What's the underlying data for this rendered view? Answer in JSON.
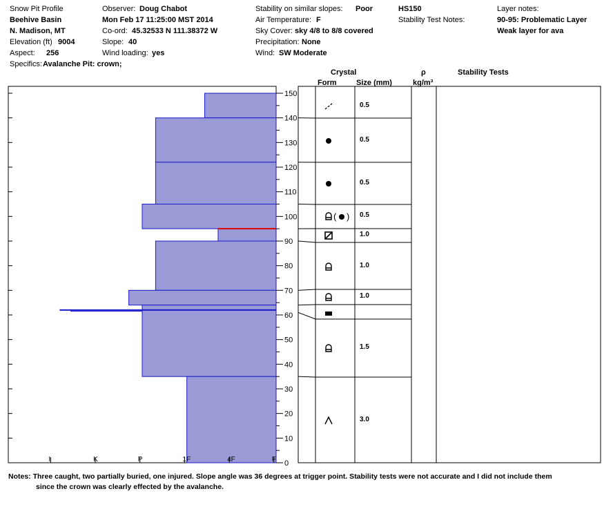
{
  "header": {
    "col1": {
      "title": "Snow Pit Profile",
      "location": "Beehive Basin",
      "region": "N. Madison, MT",
      "elevation_label": "Elevation (ft)",
      "elevation_value": "9004",
      "aspect_label": "Aspect:",
      "aspect_value": "256",
      "specifics_label": "Specifics:",
      "specifics_value": "Avalanche Pit: crown;"
    },
    "col2": {
      "observer_label": "Observer:",
      "observer_value": "Doug Chabot",
      "datetime": "Mon Feb 17 11:25:00 MST 2014",
      "coord_label": "Co-ord:",
      "coord_value": "45.32533 N 111.38372 W",
      "slope_label": "Slope:",
      "slope_value": "40",
      "wind_loading_label": "Wind loading:",
      "wind_loading_value": "yes"
    },
    "col3": {
      "stability_label": "Stability on similar slopes:",
      "stability_value": "Poor",
      "air_temp_label": "Air Temperature:",
      "air_temp_value": "F",
      "sky_label": "Sky Cover:",
      "sky_value": "sky 4/8 to 8/8 covered",
      "precip_label": "Precipitation:",
      "precip_value": "None",
      "wind_label": "Wind:",
      "wind_value": "SW Moderate"
    },
    "col4": {
      "hs": "HS150",
      "stability_notes_label": "Stability Test Notes:"
    },
    "col5": {
      "layer_notes_label": "Layer notes:",
      "layer_note_1": "90-95: Problematic Layer",
      "layer_note_2": "Weak layer for ava"
    }
  },
  "columns": {
    "crystal": "Crystal",
    "form": "Form",
    "size": "Size (mm)",
    "rho": "ρ",
    "rho_unit": "kg/m³",
    "stability_tests": "Stability Tests"
  },
  "notes": {
    "label": "Notes:",
    "line1": "Three caught, two partially buried, one injured. Slope angle was 36 degrees at trigger point. Stability tests were not accurate and I did not include them",
    "line2": "since the crown was clearly effected by the avalanche."
  },
  "chart_data": {
    "type": "bar",
    "title": "",
    "xlabel": "",
    "ylabel": "",
    "ylim": [
      0,
      150
    ],
    "yticks": [
      0,
      10,
      20,
      30,
      40,
      50,
      60,
      70,
      80,
      90,
      100,
      110,
      120,
      130,
      140,
      150
    ],
    "hardness_ticks": [
      "I",
      "K",
      "P",
      "1F",
      "4F",
      "F"
    ],
    "hardness_tick_positions": [
      0.5,
      1.5,
      2.5,
      3.5,
      4.5,
      5.5
    ],
    "layers": [
      {
        "top": 150,
        "bottom": 140,
        "hardness": 1.6,
        "form_symbol": "dendrite",
        "size": "0.5"
      },
      {
        "top": 140,
        "bottom": 122,
        "hardness": 2.7,
        "form_symbol": "dot",
        "size": "0.5"
      },
      {
        "top": 122,
        "bottom": 105,
        "hardness": 2.7,
        "form_symbol": "dot",
        "size": "0.5"
      },
      {
        "top": 105,
        "bottom": 95,
        "hardness": 3.0,
        "form_symbol": "mixed",
        "size": "0.5"
      },
      {
        "top": 95,
        "bottom": 90,
        "hardness": 1.3,
        "form_symbol": "square",
        "size": "1.0"
      },
      {
        "top": 90,
        "bottom": 70,
        "hardness": 2.7,
        "form_symbol": "facet",
        "size": "1.0"
      },
      {
        "top": 70,
        "bottom": 64,
        "hardness": 3.3,
        "form_symbol": "facet",
        "size": "1.0"
      },
      {
        "top": 62,
        "bottom": 61.5,
        "hardness": 4.6,
        "form_symbol": "crust",
        "size": ""
      },
      {
        "top": 64,
        "bottom": 35,
        "hardness": 3.0,
        "form_symbol": "facet",
        "size": "1.5"
      },
      {
        "top": 35,
        "bottom": 0,
        "hardness": 2.0,
        "form_symbol": "cup",
        "size": "3.0"
      }
    ],
    "weak_layer_at": 95
  },
  "colors": {
    "layer_fill": "#9a9ad6",
    "layer_stroke": "#1a1acc",
    "weak_layer": "#dd0000"
  }
}
